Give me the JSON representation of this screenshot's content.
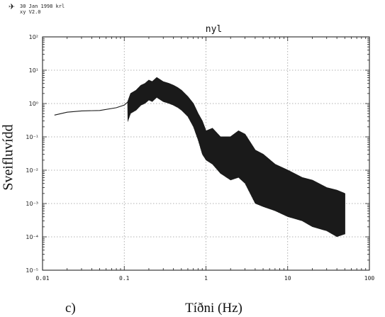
{
  "header": {
    "line1": "30 Jan 1998 krl",
    "line2": "xy V2.0"
  },
  "panel_label": "c)",
  "chart_data": {
    "type": "line",
    "title": "nyl",
    "xlabel": "Tíðni (Hz)",
    "ylabel": "Sveifluvídd",
    "xscale": "log",
    "yscale": "log",
    "xlim": [
      0.01,
      100
    ],
    "ylim": [
      1e-05,
      100
    ],
    "grid": true,
    "x_ticks": [
      "0.01",
      "0.1",
      "1",
      "10",
      "100"
    ],
    "y_ticks": [
      "10⁻⁵",
      "10⁻⁴",
      "10⁻³",
      "10⁻²",
      "10⁻¹",
      "10⁰",
      "10¹",
      "10²"
    ],
    "series": [
      {
        "color": "#1a1a1a",
        "x": [
          0.014,
          0.02,
          0.03,
          0.05,
          0.08,
          0.1,
          0.11,
          0.12,
          0.14,
          0.16,
          0.18,
          0.2,
          0.22,
          0.25,
          0.28,
          0.3,
          0.35,
          0.4,
          0.45,
          0.5,
          0.6,
          0.7,
          0.8,
          0.9,
          1.0,
          1.2,
          1.5,
          2.0,
          2.5,
          3.0,
          4.0,
          5.0,
          7.0,
          10.0,
          15.0,
          20.0,
          30.0,
          40.0,
          50.0
        ],
        "y": [
          0.45,
          0.55,
          0.6,
          0.62,
          0.75,
          0.9,
          1.1,
          2.0,
          2.5,
          3.5,
          4.0,
          5.0,
          4.5,
          6.0,
          5.0,
          4.5,
          4.0,
          3.5,
          3.0,
          2.5,
          1.6,
          1.0,
          0.5,
          0.3,
          0.15,
          0.18,
          0.1,
          0.1,
          0.15,
          0.12,
          0.04,
          0.03,
          0.015,
          0.01,
          0.006,
          0.005,
          0.003,
          0.0025,
          0.002
        ],
        "lower_envelope": {
          "x": [
            0.6,
            0.7,
            0.8,
            0.9,
            1.0,
            1.2,
            1.5,
            2.0,
            2.5,
            3.0,
            4.0,
            5.0,
            7.0,
            10.0,
            15.0,
            20.0,
            30.0,
            40.0,
            50.0
          ],
          "y": [
            0.4,
            0.2,
            0.08,
            0.03,
            0.02,
            0.015,
            0.008,
            0.005,
            0.006,
            0.004,
            0.001,
            0.0008,
            0.0006,
            0.0004,
            0.0003,
            0.0002,
            0.00015,
            0.0001,
            0.00012
          ]
        }
      }
    ]
  }
}
